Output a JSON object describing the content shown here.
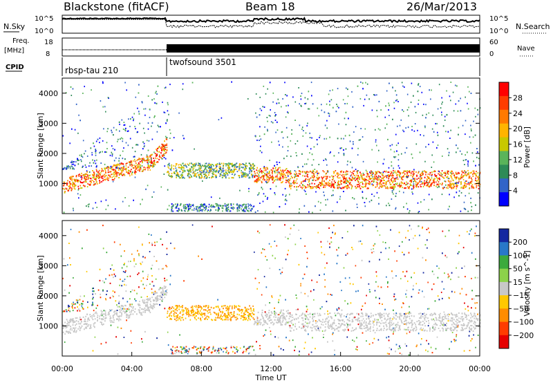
{
  "header": {
    "station": "Blackstone (fitACF)",
    "beam": "Beam 18",
    "date": "26/Mar/2013"
  },
  "panels": {
    "nsky_label": "N.Sky",
    "nsky_ticks": [
      "10^5",
      "10^0"
    ],
    "nsearch_label": "N.Search",
    "nsearch_ticks": [
      "10^5",
      "10^0"
    ],
    "freq_label_1": "Freq.",
    "freq_label_2": "[MHz]",
    "freq_ticks": [
      "18",
      "8"
    ],
    "nave_label": "Nave",
    "nave_ticks": [
      "60",
      "0"
    ],
    "cpid_label": "CPID",
    "cpid_1": "rbsp-tau 210",
    "cpid_2": "twofsound 3501"
  },
  "chart_data": [
    {
      "type": "heatmap",
      "title": "",
      "xlabel": "Time UT",
      "ylabel": "Slant Range [km]",
      "x_ticks": [
        "00:00",
        "04:00",
        "08:00",
        "12:00",
        "16:00",
        "20:00",
        "00:00"
      ],
      "y_ticks": [
        1000,
        2000,
        3000,
        4000
      ],
      "ylim": [
        0,
        4500
      ],
      "xlim_hours": [
        0,
        24
      ],
      "colorbar": {
        "label": "Power [dB]",
        "ticks": [
          "28",
          "24",
          "20",
          "16",
          "12",
          "8",
          "4"
        ],
        "colors": [
          "#ff0000",
          "#ff3c00",
          "#ff7a00",
          "#ffb400",
          "#c8c800",
          "#5ab45a",
          "#2e8b57",
          "#3264c8",
          "#0000ff"
        ]
      }
    },
    {
      "type": "heatmap",
      "title": "",
      "xlabel": "Time UT",
      "ylabel": "Slant Range [km]",
      "x_ticks": [
        "00:00",
        "04:00",
        "08:00",
        "12:00",
        "16:00",
        "20:00",
        "00:00"
      ],
      "y_ticks": [
        1000,
        2000,
        3000,
        4000
      ],
      "ylim": [
        0,
        4500
      ],
      "xlim_hours": [
        0,
        24
      ],
      "colorbar": {
        "label": "Velocity [m s^-1]",
        "ticks": [
          "200",
          "100",
          "50",
          "15",
          "−15",
          "−50",
          "−100",
          "−200"
        ],
        "colors": [
          "#1428a0",
          "#2878c8",
          "#3caa3c",
          "#8cd24a",
          "#c8c8c8",
          "#ffc800",
          "#ff8c00",
          "#ff3c00",
          "#e60000"
        ]
      }
    }
  ]
}
